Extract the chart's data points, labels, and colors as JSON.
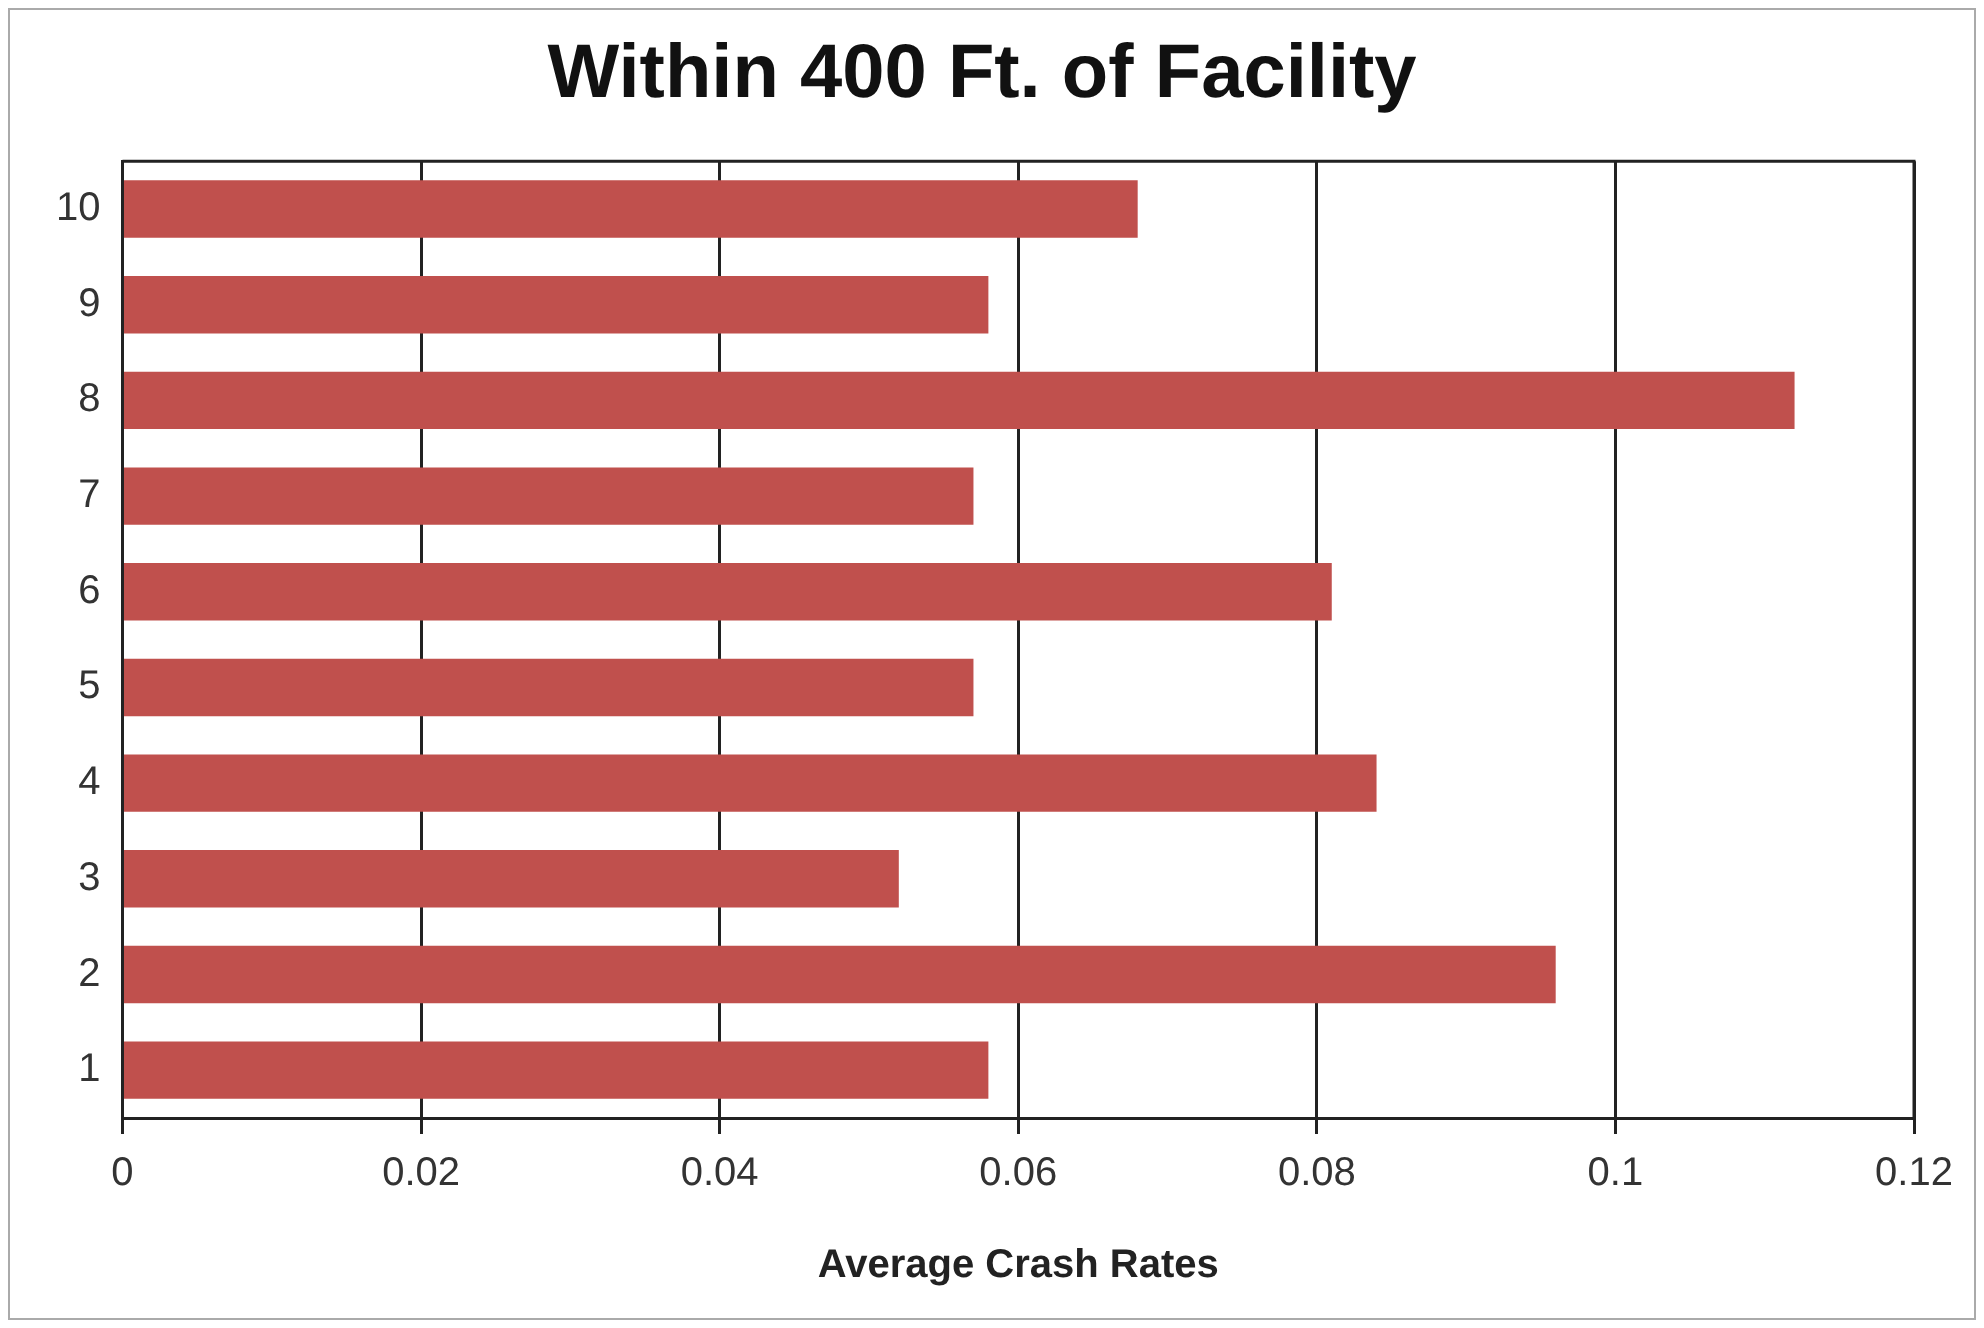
{
  "chart_data": {
    "type": "bar",
    "orientation": "horizontal",
    "title": "Within 400 Ft. of Facility",
    "xlabel": "Average Crash Rates",
    "categories": [
      "10",
      "9",
      "8",
      "7",
      "6",
      "5",
      "4",
      "3",
      "2",
      "1"
    ],
    "values": [
      0.068,
      0.058,
      0.112,
      0.057,
      0.081,
      0.057,
      0.084,
      0.052,
      0.096,
      0.058
    ],
    "color": "#c0504d",
    "xlim": [
      0,
      0.12
    ],
    "xticks": [
      0,
      0.02,
      0.04,
      0.06,
      0.08,
      0.1,
      0.12
    ],
    "grid": "x",
    "legend": false
  }
}
